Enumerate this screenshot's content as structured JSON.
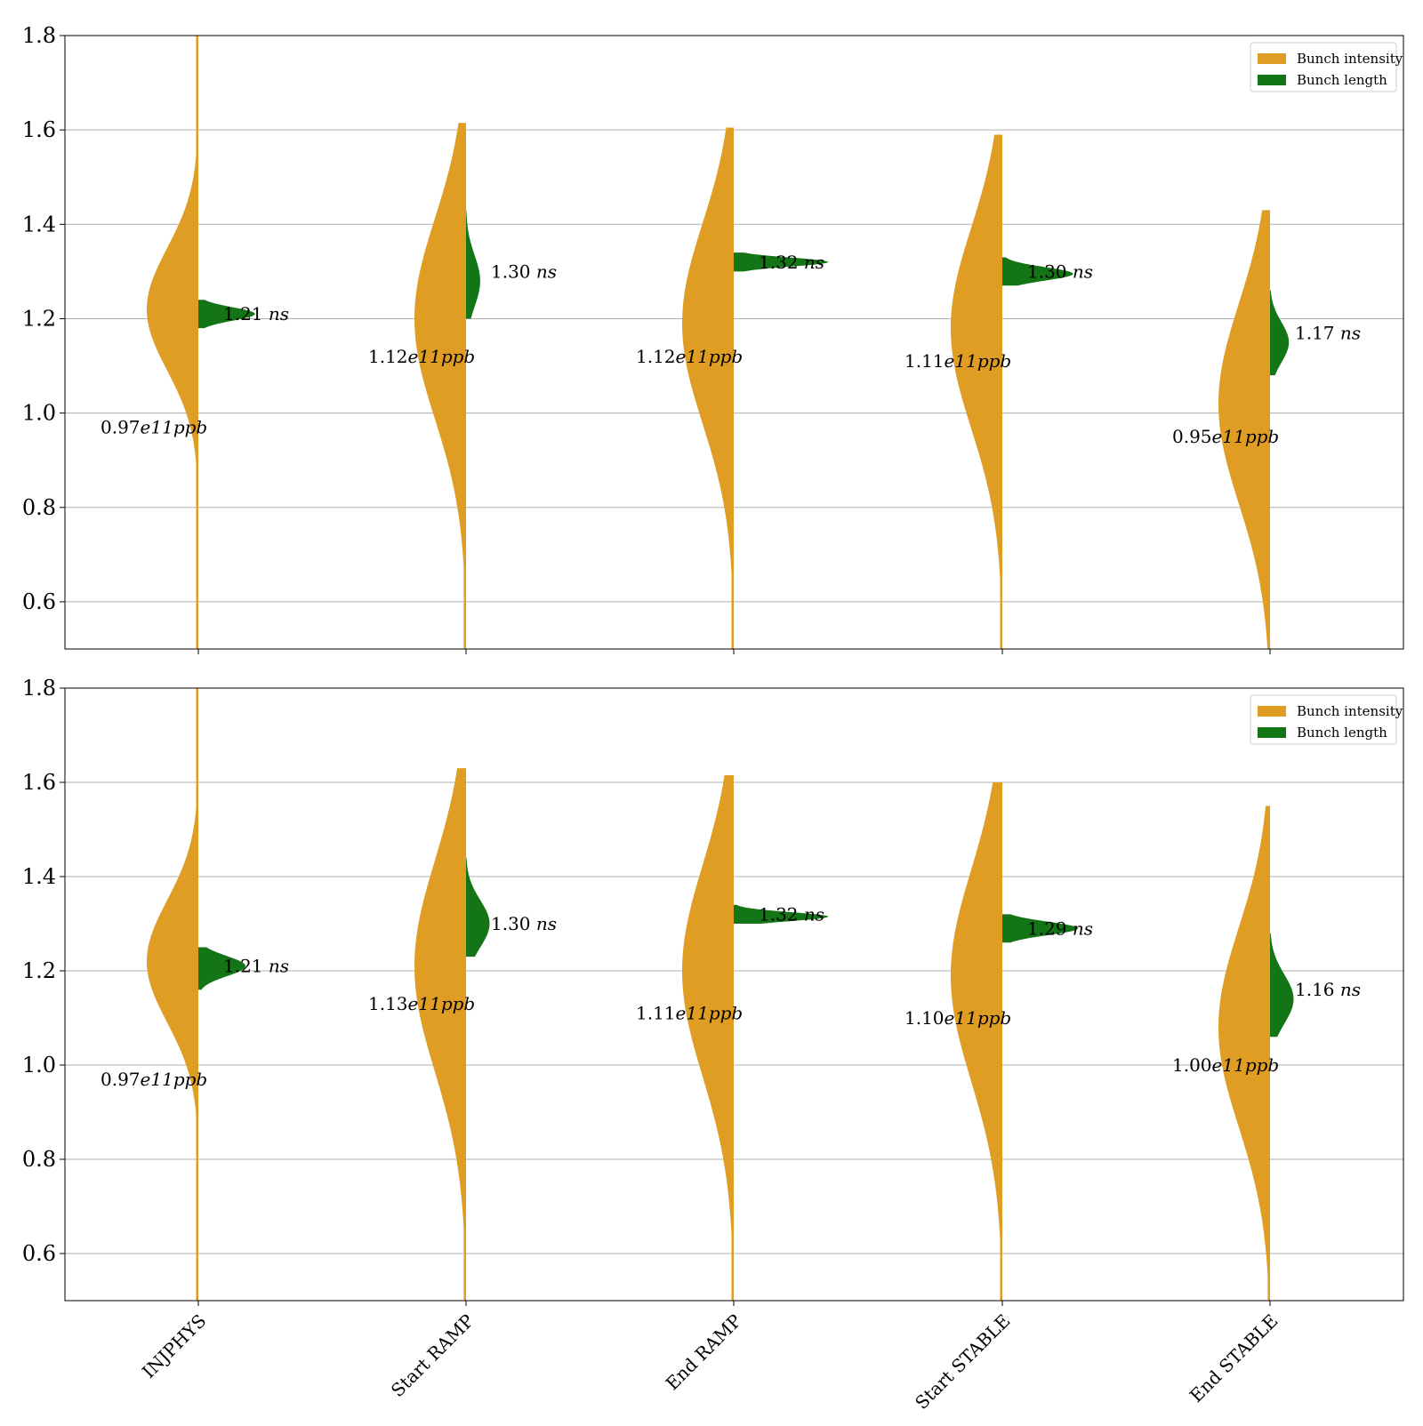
{
  "chart_data": {
    "type": "split-violin",
    "categories": [
      "INJPHYS",
      "Start RAMP",
      "End RAMP",
      "Start STABLE",
      "End STABLE"
    ],
    "legend": {
      "position": "top-right",
      "entries": [
        {
          "label": "Bunch intensity",
          "color": "#e09d23"
        },
        {
          "label": "Bunch length",
          "color": "#137516"
        }
      ]
    },
    "colors": {
      "intensity": "#e09d23",
      "length": "#137516"
    },
    "panels": [
      {
        "ylim": [
          0.5,
          1.8
        ],
        "yticks": [
          "0.6",
          "0.8",
          "1.0",
          "1.2",
          "1.4",
          "1.6",
          "1.8"
        ],
        "grid": true,
        "groups": [
          {
            "intensity_center": 1.22,
            "intensity_halfwidth": 0.11,
            "intensity_top": 1.8,
            "intensity_bottom": 0.5,
            "intensity_label_num": "0.97",
            "intensity_label_exp": "e11",
            "intensity_label_unit": "ppb",
            "intensity_label_y": 0.97,
            "length_center": 1.21,
            "length_halfwidth": 0.12,
            "length_top": 1.24,
            "length_bottom": 1.18,
            "length_label_num": "1.21",
            "length_label_unit": "ns",
            "length_label_y": 1.21
          },
          {
            "intensity_center": 1.2,
            "intensity_halfwidth": 0.18,
            "intensity_top": 1.615,
            "intensity_bottom": 0.5,
            "intensity_label_num": "1.12",
            "intensity_label_exp": "e11",
            "intensity_label_unit": "ppb",
            "intensity_label_y": 1.12,
            "length_center": 1.28,
            "length_halfwidth": 0.03,
            "length_top": 1.43,
            "length_bottom": 1.2,
            "length_label_num": "1.30",
            "length_label_unit": "ns",
            "length_label_y": 1.3
          },
          {
            "intensity_center": 1.19,
            "intensity_halfwidth": 0.18,
            "intensity_top": 1.605,
            "intensity_bottom": 0.5,
            "intensity_label_num": "1.12",
            "intensity_label_exp": "e11",
            "intensity_label_unit": "ppb",
            "intensity_label_y": 1.12,
            "length_center": 1.32,
            "length_halfwidth": 0.2,
            "length_top": 1.34,
            "length_bottom": 1.3,
            "length_label_num": "1.32",
            "length_label_unit": "ns",
            "length_label_y": 1.32
          },
          {
            "intensity_center": 1.18,
            "intensity_halfwidth": 0.18,
            "intensity_top": 1.59,
            "intensity_bottom": 0.5,
            "intensity_label_num": "1.11",
            "intensity_label_exp": "e11",
            "intensity_label_unit": "ppb",
            "intensity_label_y": 1.11,
            "length_center": 1.295,
            "length_halfwidth": 0.15,
            "length_top": 1.33,
            "length_bottom": 1.27,
            "length_label_num": "1.30",
            "length_label_unit": "ns",
            "length_label_y": 1.3
          },
          {
            "intensity_center": 1.02,
            "intensity_halfwidth": 0.18,
            "intensity_top": 1.43,
            "intensity_bottom": 0.5,
            "intensity_label_num": "0.95",
            "intensity_label_exp": "e11",
            "intensity_label_unit": "ppb",
            "intensity_label_y": 0.95,
            "length_center": 1.15,
            "length_halfwidth": 0.04,
            "length_top": 1.26,
            "length_bottom": 1.08,
            "length_label_num": "1.17",
            "length_label_unit": "ns",
            "length_label_y": 1.17
          }
        ]
      },
      {
        "ylim": [
          0.5,
          1.8
        ],
        "yticks": [
          "0.6",
          "0.8",
          "1.0",
          "1.2",
          "1.4",
          "1.6",
          "1.8"
        ],
        "grid": true,
        "groups": [
          {
            "intensity_center": 1.22,
            "intensity_halfwidth": 0.11,
            "intensity_top": 1.8,
            "intensity_bottom": 0.5,
            "intensity_label_num": "0.97",
            "intensity_label_exp": "e11",
            "intensity_label_unit": "ppb",
            "intensity_label_y": 0.97,
            "length_center": 1.21,
            "length_halfwidth": 0.1,
            "length_top": 1.25,
            "length_bottom": 1.16,
            "length_label_num": "1.21",
            "length_label_unit": "ns",
            "length_label_y": 1.21
          },
          {
            "intensity_center": 1.21,
            "intensity_halfwidth": 0.19,
            "intensity_top": 1.63,
            "intensity_bottom": 0.5,
            "intensity_label_num": "1.13",
            "intensity_label_exp": "e11",
            "intensity_label_unit": "ppb",
            "intensity_label_y": 1.13,
            "length_center": 1.3,
            "length_halfwidth": 0.05,
            "length_top": 1.44,
            "length_bottom": 1.23,
            "length_label_num": "1.30",
            "length_label_unit": "ns",
            "length_label_y": 1.3
          },
          {
            "intensity_center": 1.2,
            "intensity_halfwidth": 0.19,
            "intensity_top": 1.615,
            "intensity_bottom": 0.5,
            "intensity_label_num": "1.11",
            "intensity_label_exp": "e11",
            "intensity_label_unit": "ppb",
            "intensity_label_y": 1.11,
            "length_center": 1.315,
            "length_halfwidth": 0.2,
            "length_top": 1.34,
            "length_bottom": 1.3,
            "length_label_num": "1.32",
            "length_label_unit": "ns",
            "length_label_y": 1.32
          },
          {
            "intensity_center": 1.19,
            "intensity_halfwidth": 0.19,
            "intensity_top": 1.6,
            "intensity_bottom": 0.5,
            "intensity_label_num": "1.10",
            "intensity_label_exp": "e11",
            "intensity_label_unit": "ppb",
            "intensity_label_y": 1.1,
            "length_center": 1.29,
            "length_halfwidth": 0.16,
            "length_top": 1.32,
            "length_bottom": 1.26,
            "length_label_num": "1.29",
            "length_label_unit": "ns",
            "length_label_y": 1.29
          },
          {
            "intensity_center": 1.08,
            "intensity_halfwidth": 0.18,
            "intensity_top": 1.55,
            "intensity_bottom": 0.5,
            "intensity_label_num": "1.00",
            "intensity_label_exp": "e11",
            "intensity_label_unit": "ppb",
            "intensity_label_y": 1.0,
            "length_center": 1.14,
            "length_halfwidth": 0.05,
            "length_top": 1.28,
            "length_bottom": 1.06,
            "length_label_num": "1.16",
            "length_label_unit": "ns",
            "length_label_y": 1.16
          }
        ]
      }
    ]
  }
}
